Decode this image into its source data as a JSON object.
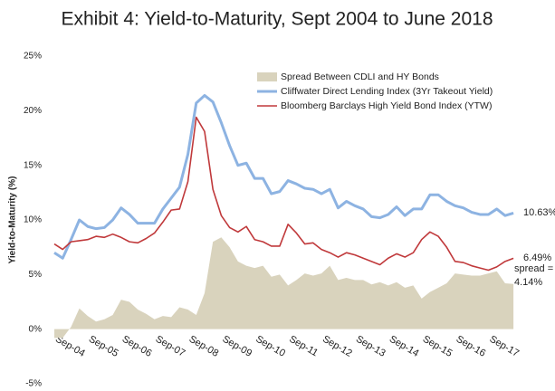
{
  "chart_data": {
    "type": "line-area",
    "title": "Exhibit 4:  Yield-to-Maturity, Sept 2004 to June 2018",
    "y_label": "Yield-to-Maturity (%)",
    "categories": [
      "Sep-04",
      null,
      null,
      null,
      "Sep-05",
      null,
      null,
      null,
      "Sep-06",
      null,
      null,
      null,
      "Sep-07",
      null,
      null,
      null,
      "Sep-08",
      null,
      null,
      null,
      "Sep-09",
      null,
      null,
      null,
      "Sep-10",
      null,
      null,
      null,
      "Sep-11",
      null,
      null,
      null,
      "Sep-12",
      null,
      null,
      null,
      "Sep-13",
      null,
      null,
      null,
      "Sep-14",
      null,
      null,
      null,
      "Sep-15",
      null,
      null,
      null,
      "Sep-16",
      null,
      null,
      null,
      "Sep-17",
      null,
      null,
      null
    ],
    "ylim": [
      -5,
      25
    ],
    "yticks": [
      {
        "value": -5,
        "label": "-5%"
      },
      {
        "value": 0,
        "label": "0%"
      },
      {
        "value": 5,
        "label": "5%"
      },
      {
        "value": 10,
        "label": "10%"
      },
      {
        "value": 15,
        "label": "15%"
      },
      {
        "value": 20,
        "label": "20%"
      },
      {
        "value": 25,
        "label": "25%"
      }
    ],
    "grid": false,
    "legend_position": "upper right",
    "series": [
      {
        "name": "Spread Between CDLI and HY Bonds",
        "kind": "area",
        "color": "#d9d3bd",
        "values": [
          -0.8,
          -0.8,
          0.2,
          1.9,
          1.2,
          0.7,
          0.9,
          1.3,
          2.7,
          2.5,
          1.8,
          1.4,
          0.9,
          1.2,
          1.1,
          2.0,
          1.8,
          1.3,
          3.3,
          8.0,
          8.4,
          7.5,
          6.2,
          5.8,
          5.6,
          5.8,
          4.8,
          5.0,
          4.0,
          4.5,
          5.1,
          4.9,
          5.1,
          5.8,
          4.5,
          4.7,
          4.5,
          4.5,
          4.1,
          4.3,
          4.0,
          4.3,
          3.8,
          4.0,
          2.8,
          3.4,
          3.8,
          4.2,
          5.1,
          5.0,
          4.9,
          4.9,
          5.1,
          5.3,
          4.2,
          4.14
        ],
        "value_labels": [
          null,
          null,
          null,
          null,
          null,
          null,
          null,
          null,
          null,
          null,
          null,
          null,
          null,
          null,
          null,
          null,
          null,
          null,
          null,
          null,
          null,
          null,
          null,
          null,
          null,
          null,
          null,
          null,
          null,
          null,
          null,
          null,
          null,
          null,
          null,
          null,
          null,
          null,
          null,
          null,
          null,
          null,
          null,
          null,
          null,
          null,
          null,
          null,
          null,
          null,
          null,
          null,
          null,
          null,
          null,
          "spread = 4.14%"
        ]
      },
      {
        "name": "Cliffwater Direct Lending Index (3Yr Takeout Yield)",
        "kind": "line",
        "color": "#8db3e2",
        "values": [
          7.0,
          6.5,
          8.2,
          10.0,
          9.4,
          9.2,
          9.3,
          10.0,
          11.1,
          10.5,
          9.7,
          9.7,
          9.7,
          11.0,
          12.0,
          13.0,
          16.0,
          20.7,
          21.4,
          20.8,
          18.9,
          16.8,
          15.0,
          15.2,
          13.8,
          13.8,
          12.4,
          12.6,
          13.6,
          13.3,
          12.9,
          12.8,
          12.4,
          12.8,
          11.1,
          11.7,
          11.3,
          11.0,
          10.3,
          10.2,
          10.5,
          11.2,
          10.4,
          11.0,
          11.0,
          12.3,
          12.3,
          11.7,
          11.3,
          11.1,
          10.7,
          10.5,
          10.5,
          11.0,
          10.4,
          10.63
        ],
        "value_labels": [
          null,
          null,
          null,
          null,
          null,
          null,
          null,
          null,
          null,
          null,
          null,
          null,
          null,
          null,
          null,
          null,
          null,
          null,
          null,
          null,
          null,
          null,
          null,
          null,
          null,
          null,
          null,
          null,
          null,
          null,
          null,
          null,
          null,
          null,
          null,
          null,
          null,
          null,
          null,
          null,
          null,
          null,
          null,
          null,
          null,
          null,
          null,
          null,
          null,
          null,
          null,
          null,
          null,
          null,
          null,
          "10.63%"
        ]
      },
      {
        "name": "Bloomberg Barclays High Yield Bond Index (YTW)",
        "kind": "line",
        "color": "#c0393b",
        "values": [
          7.8,
          7.3,
          8.0,
          8.1,
          8.2,
          8.5,
          8.4,
          8.7,
          8.4,
          8.0,
          7.9,
          8.3,
          8.8,
          9.8,
          10.9,
          11.0,
          13.5,
          19.4,
          18.1,
          12.8,
          10.4,
          9.3,
          8.9,
          9.4,
          8.2,
          8.0,
          7.6,
          7.6,
          9.6,
          8.8,
          7.8,
          7.9,
          7.3,
          7.0,
          6.6,
          7.0,
          6.8,
          6.5,
          6.2,
          5.9,
          6.5,
          6.9,
          6.6,
          7.0,
          8.2,
          8.9,
          8.5,
          7.5,
          6.2,
          6.1,
          5.8,
          5.6,
          5.4,
          5.7,
          6.2,
          6.49
        ],
        "value_labels": [
          null,
          null,
          null,
          null,
          null,
          null,
          null,
          null,
          null,
          null,
          null,
          null,
          null,
          null,
          null,
          null,
          null,
          null,
          null,
          null,
          null,
          null,
          null,
          null,
          null,
          null,
          null,
          null,
          null,
          null,
          null,
          null,
          null,
          null,
          null,
          null,
          null,
          null,
          null,
          null,
          null,
          null,
          null,
          null,
          null,
          null,
          null,
          null,
          null,
          null,
          null,
          null,
          null,
          null,
          null,
          "6.49%"
        ]
      }
    ]
  }
}
